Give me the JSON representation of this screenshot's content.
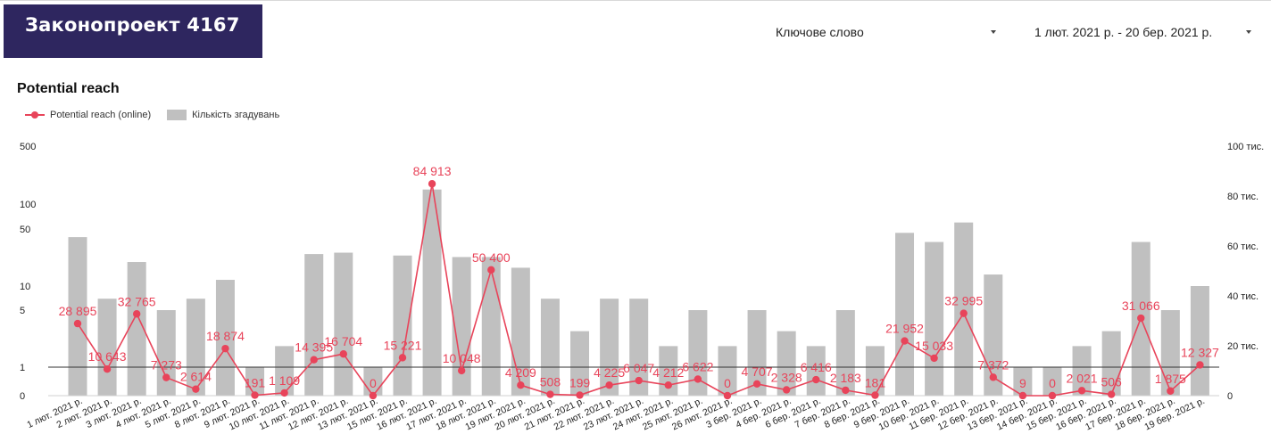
{
  "header": {
    "title": "Законопроект 4167",
    "filter_keyword": "Ключове слово",
    "filter_date": "1 лют. 2021 р. - 20 бер. 2021 р."
  },
  "section": {
    "title": "Potential reach"
  },
  "colors": {
    "title_bg": "#2e265f",
    "line": "#e8445a",
    "bar": "#c0c0c0"
  },
  "chart_data": {
    "type": "bar",
    "categories": [
      "1 лют. 2021 р.",
      "2 лют. 2021 р.",
      "3 лют. 2021 р.",
      "4 лют. 2021 р.",
      "5 лют. 2021 р.",
      "8 лют. 2021 р.",
      "9 лют. 2021 р.",
      "10 лют. 2021 р.",
      "11 лют. 2021 р.",
      "12 лют. 2021 р.",
      "13 лют. 2021 р.",
      "15 лют. 2021 р.",
      "16 лют. 2021 р.",
      "17 лют. 2021 р.",
      "18 лют. 2021 р.",
      "19 лют. 2021 р.",
      "20 лют. 2021 р.",
      "21 лют. 2021 р.",
      "22 лют. 2021 р.",
      "23 лют. 2021 р.",
      "24 лют. 2021 р.",
      "25 лют. 2021 р.",
      "26 лют. 2021 р.",
      "3 бер. 2021 р.",
      "4 бер. 2021 р.",
      "6 бер. 2021 р.",
      "7 бер. 2021 р.",
      "8 бер. 2021 р.",
      "9 бер. 2021 р.",
      "10 бер. 2021 р.",
      "11 бер. 2021 р.",
      "12 бер. 2021 р.",
      "13 бер. 2021 р.",
      "14 бер. 2021 р.",
      "15 бер. 2021 р.",
      "16 бер. 2021 р.",
      "17 бер. 2021 р.",
      "18 бер. 2021 р.",
      "19 бер. 2021 р."
    ],
    "series": [
      {
        "name": "Кількість згадувань",
        "type": "bar",
        "axis": "left",
        "values": [
          40,
          7,
          20,
          5,
          7,
          12,
          1,
          2,
          25,
          26,
          1,
          24,
          150,
          23,
          23,
          17,
          7,
          3,
          7,
          7,
          2,
          5,
          2,
          5,
          3,
          2,
          5,
          2,
          45,
          35,
          60,
          14,
          1,
          1,
          2,
          3,
          35,
          5,
          10
        ]
      },
      {
        "name": "Potential reach (online)",
        "type": "line",
        "axis": "right",
        "values": [
          28895,
          10643,
          32765,
          7273,
          2614,
          18874,
          191,
          1109,
          14395,
          16704,
          0,
          15221,
          84913,
          10048,
          50400,
          4209,
          508,
          199,
          4225,
          6047,
          4212,
          6622,
          0,
          4707,
          2328,
          6416,
          2183,
          181,
          21952,
          15033,
          32995,
          7372,
          9,
          0,
          2021,
          506,
          31066,
          1875,
          12327
        ],
        "labels": [
          "28 895",
          "10 643",
          "32 765",
          "7 273",
          "2 614",
          "18 874",
          "191",
          "1 109",
          "14 395",
          "16 704",
          "0",
          "15 221",
          "84 913",
          "10 048",
          "50 400",
          "4 209",
          "508",
          "199",
          "4 225",
          "6 047",
          "4 212",
          "6 622",
          "0",
          "4 707",
          "2 328",
          "6 416",
          "2 183",
          "181",
          "21 952",
          "15 033",
          "32 995",
          "7 372",
          "9",
          "0",
          "2 021",
          "506",
          "31 066",
          "1 875",
          "12 327"
        ]
      }
    ],
    "left_axis": {
      "scale": "log",
      "ticks": [
        0,
        1,
        5,
        10,
        50,
        100,
        500
      ],
      "tick_labels": [
        "0",
        "1",
        "5",
        "10",
        "50",
        "100",
        "500"
      ]
    },
    "right_axis": {
      "ylim": [
        0,
        100000
      ],
      "ticks": [
        0,
        20000,
        40000,
        60000,
        80000,
        100000
      ],
      "tick_labels": [
        "0",
        "20 тис.",
        "40 тис.",
        "60 тис.",
        "80 тис.",
        "100 тис."
      ]
    },
    "legend_position": "top-left",
    "grid": false
  }
}
